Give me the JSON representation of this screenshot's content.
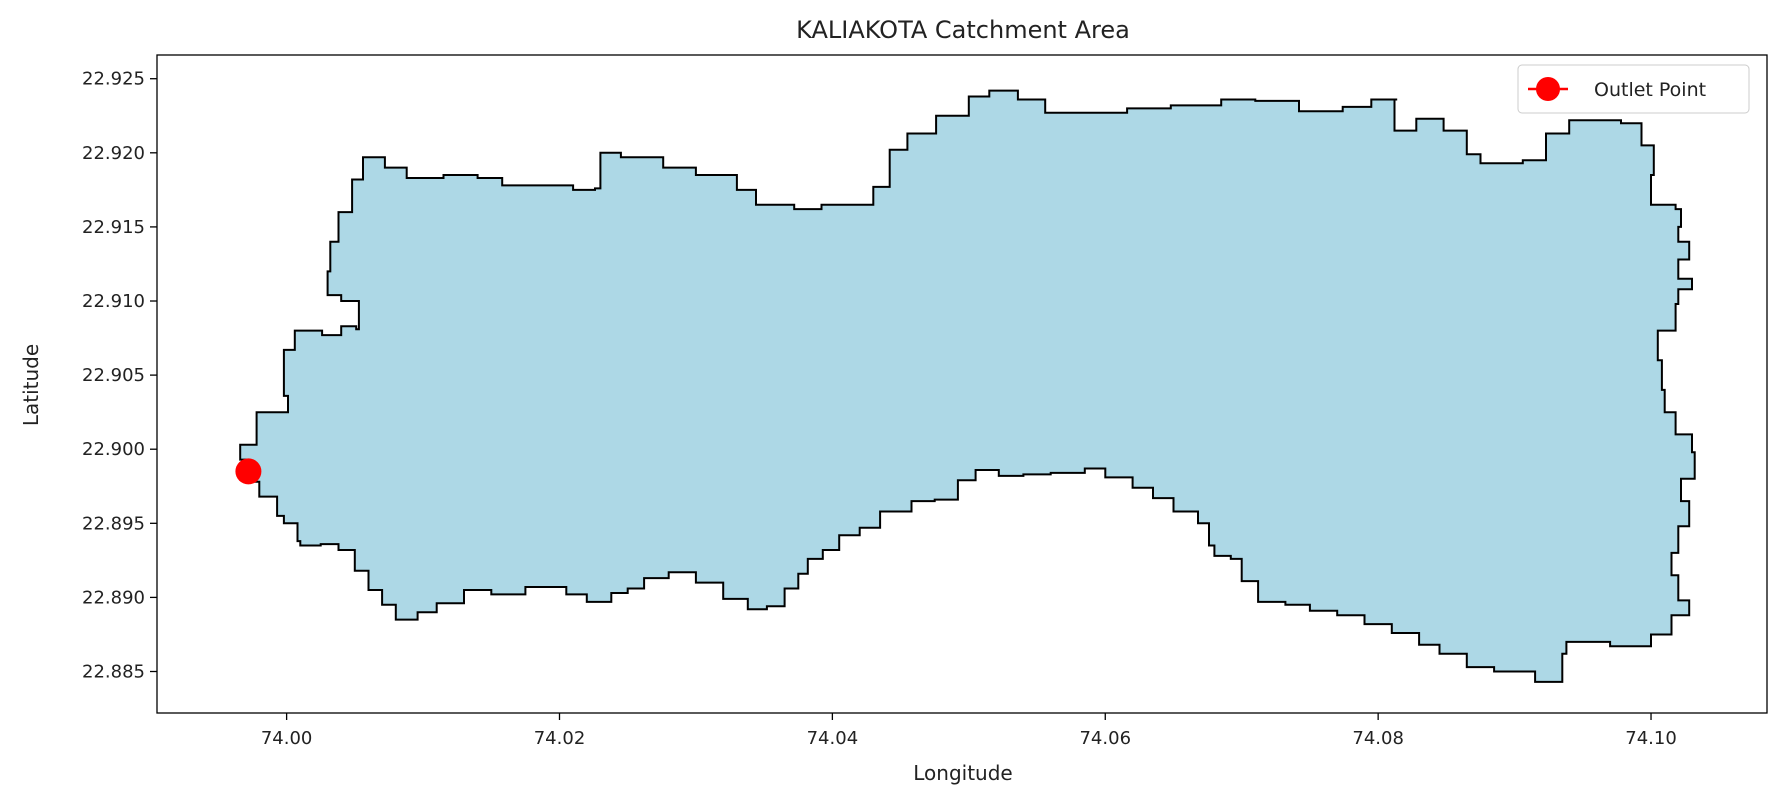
{
  "chart_data": {
    "type": "map",
    "title": "KALIAKOTA Catchment Area",
    "xlabel": "Longitude",
    "ylabel": "Latitude",
    "xlim": [
      73.9905,
      74.1085
    ],
    "ylim": [
      22.8822,
      22.9266
    ],
    "x_ticks": [
      74.0,
      74.02,
      74.04,
      74.06,
      74.08,
      74.1
    ],
    "x_tick_labels": [
      "74.00",
      "74.02",
      "74.04",
      "74.06",
      "74.08",
      "74.10"
    ],
    "y_ticks": [
      22.885,
      22.89,
      22.895,
      22.9,
      22.905,
      22.91,
      22.915,
      22.92,
      22.925
    ],
    "y_tick_labels": [
      "22.885",
      "22.890",
      "22.895",
      "22.900",
      "22.905",
      "22.910",
      "22.915",
      "22.920",
      "22.925"
    ],
    "grid": false,
    "legend": {
      "entries": [
        "Outlet Point"
      ],
      "placement": "top-right"
    },
    "colors": {
      "fill": "#add8e6",
      "edge": "#000000",
      "outlet": "#ff0000"
    },
    "outlet_point": {
      "name": "Outlet Point",
      "lon": 73.9972,
      "lat": 22.8985
    },
    "catchment_boundary": [
      [
        73.9972,
        22.8993
      ],
      [
        73.9966,
        22.9003
      ],
      [
        73.9978,
        22.9025
      ],
      [
        74.0001,
        22.9036
      ],
      [
        73.9998,
        22.9067
      ],
      [
        74.0006,
        22.908
      ],
      [
        74.0026,
        22.9077
      ],
      [
        74.004,
        22.9083
      ],
      [
        74.0051,
        22.9081
      ],
      [
        74.0053,
        22.91
      ],
      [
        74.004,
        22.9104
      ],
      [
        74.003,
        22.912
      ],
      [
        74.0032,
        22.914
      ],
      [
        74.0038,
        22.916
      ],
      [
        74.0048,
        22.9182
      ],
      [
        74.0056,
        22.9197
      ],
      [
        74.0072,
        22.919
      ],
      [
        74.0088,
        22.9183
      ],
      [
        74.0115,
        22.9185
      ],
      [
        74.014,
        22.9183
      ],
      [
        74.0158,
        22.9178
      ],
      [
        74.0183,
        22.9178
      ],
      [
        74.021,
        22.9175
      ],
      [
        74.0226,
        22.9176
      ],
      [
        74.023,
        22.92
      ],
      [
        74.0245,
        22.9197
      ],
      [
        74.0276,
        22.919
      ],
      [
        74.03,
        22.9185
      ],
      [
        74.033,
        22.9175
      ],
      [
        74.0344,
        22.9165
      ],
      [
        74.0372,
        22.9162
      ],
      [
        74.0392,
        22.9165
      ],
      [
        74.0413,
        22.9165
      ],
      [
        74.043,
        22.9177
      ],
      [
        74.0442,
        22.9202
      ],
      [
        74.0455,
        22.9213
      ],
      [
        74.0476,
        22.9225
      ],
      [
        74.05,
        22.9238
      ],
      [
        74.0515,
        22.9242
      ],
      [
        74.0536,
        22.9236
      ],
      [
        74.0556,
        22.9227
      ],
      [
        74.0582,
        22.9227
      ],
      [
        74.0616,
        22.923
      ],
      [
        74.0648,
        22.9232
      ],
      [
        74.0685,
        22.9236
      ],
      [
        74.071,
        22.9235
      ],
      [
        74.0742,
        22.9228
      ],
      [
        74.0774,
        22.9231
      ],
      [
        74.0795,
        22.9236
      ],
      [
        74.0814,
        22.9236
      ],
      [
        74.0812,
        22.9215
      ],
      [
        74.0828,
        22.9223
      ],
      [
        74.0848,
        22.9215
      ],
      [
        74.0865,
        22.9199
      ],
      [
        74.0875,
        22.9193
      ],
      [
        74.0906,
        22.9195
      ],
      [
        74.0923,
        22.9213
      ],
      [
        74.094,
        22.9222
      ],
      [
        74.0962,
        22.9222
      ],
      [
        74.0978,
        22.922
      ],
      [
        74.0993,
        22.9205
      ],
      [
        74.1002,
        22.9185
      ],
      [
        74.1,
        22.9165
      ],
      [
        74.1018,
        22.9162
      ],
      [
        74.1022,
        22.915
      ],
      [
        74.102,
        22.914
      ],
      [
        74.1028,
        22.9128
      ],
      [
        74.102,
        22.9115
      ],
      [
        74.103,
        22.9108
      ],
      [
        74.102,
        22.9098
      ],
      [
        74.1018,
        22.908
      ],
      [
        74.1005,
        22.906
      ],
      [
        74.1008,
        22.904
      ],
      [
        74.101,
        22.9025
      ],
      [
        74.1018,
        22.901
      ],
      [
        74.103,
        22.8998
      ],
      [
        74.1032,
        22.898
      ],
      [
        74.1022,
        22.8965
      ],
      [
        74.1028,
        22.8948
      ],
      [
        74.102,
        22.893
      ],
      [
        74.1015,
        22.8915
      ],
      [
        74.102,
        22.8898
      ],
      [
        74.1028,
        22.8888
      ],
      [
        74.1015,
        22.8875
      ],
      [
        74.1,
        22.8867
      ],
      [
        74.097,
        22.887
      ],
      [
        74.095,
        22.887
      ],
      [
        74.0938,
        22.8862
      ],
      [
        74.0935,
        22.8843
      ],
      [
        74.0924,
        22.8843
      ],
      [
        74.0915,
        22.885
      ],
      [
        74.09,
        22.885
      ],
      [
        74.0885,
        22.8853
      ],
      [
        74.0865,
        22.8862
      ],
      [
        74.0845,
        22.8868
      ],
      [
        74.083,
        22.8876
      ],
      [
        74.081,
        22.8882
      ],
      [
        74.079,
        22.8888
      ],
      [
        74.077,
        22.8891
      ],
      [
        74.075,
        22.8895
      ],
      [
        74.0732,
        22.8897
      ],
      [
        74.0712,
        22.8911
      ],
      [
        74.07,
        22.8926
      ],
      [
        74.0692,
        22.8928
      ],
      [
        74.068,
        22.8935
      ],
      [
        74.0676,
        22.895
      ],
      [
        74.0668,
        22.8958
      ],
      [
        74.065,
        22.8967
      ],
      [
        74.0635,
        22.8974
      ],
      [
        74.062,
        22.8981
      ],
      [
        74.06,
        22.8987
      ],
      [
        74.0585,
        22.8984
      ],
      [
        74.056,
        22.8983
      ],
      [
        74.054,
        22.8982
      ],
      [
        74.0522,
        22.8986
      ],
      [
        74.0505,
        22.8979
      ],
      [
        74.0492,
        22.8966
      ],
      [
        74.0475,
        22.8965
      ],
      [
        74.0458,
        22.8958
      ],
      [
        74.0435,
        22.8947
      ],
      [
        74.042,
        22.8942
      ],
      [
        74.0405,
        22.8932
      ],
      [
        74.0393,
        22.8926
      ],
      [
        74.0382,
        22.8916
      ],
      [
        74.0375,
        22.8906
      ],
      [
        74.0365,
        22.8894
      ],
      [
        74.0352,
        22.8892
      ],
      [
        74.0338,
        22.8899
      ],
      [
        74.032,
        22.891
      ],
      [
        74.03,
        22.8917
      ],
      [
        74.028,
        22.8913
      ],
      [
        74.0262,
        22.8906
      ],
      [
        74.025,
        22.8903
      ],
      [
        74.0238,
        22.8897
      ],
      [
        74.022,
        22.8902
      ],
      [
        74.0205,
        22.8907
      ],
      [
        74.0188,
        22.8907
      ],
      [
        74.0175,
        22.8902
      ],
      [
        74.015,
        22.8905
      ],
      [
        74.013,
        22.8896
      ],
      [
        74.011,
        22.889
      ],
      [
        74.0096,
        22.8885
      ],
      [
        74.008,
        22.8895
      ],
      [
        74.007,
        22.8905
      ],
      [
        74.006,
        22.8918
      ],
      [
        74.005,
        22.8932
      ],
      [
        74.0038,
        22.8936
      ],
      [
        74.0025,
        22.8935
      ],
      [
        74.001,
        22.8938
      ],
      [
        74.0008,
        22.895
      ],
      [
        73.9998,
        22.8955
      ],
      [
        73.9993,
        22.8968
      ],
      [
        73.998,
        22.8978
      ],
      [
        73.9972,
        22.8993
      ]
    ]
  }
}
